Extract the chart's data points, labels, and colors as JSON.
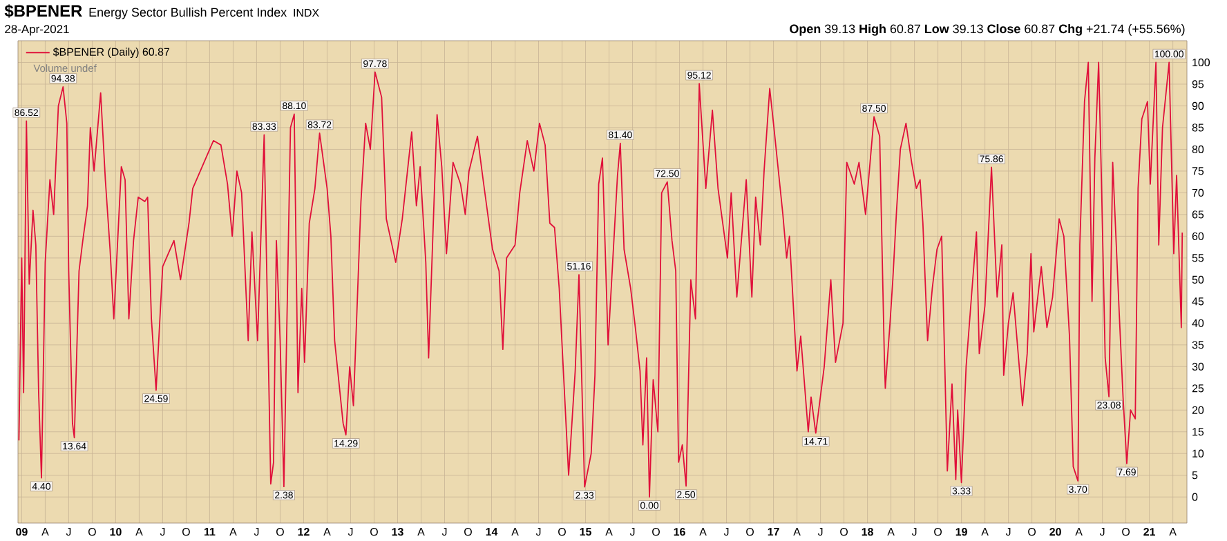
{
  "chart_data": {
    "type": "line",
    "title": "$BPENER",
    "subtitle": "Energy Sector Bullish Percent Index",
    "annotations": [
      "INDX",
      "28-Apr-2021",
      "**Open** 39.13  **High** 60.87  **Low** 39.13  **Close** 60.87  **Chg** +21.74 (+55.56%)",
      "Volume undef",
      {
        "text": "86.52",
        "x": 2009.05,
        "y": 86.52
      },
      {
        "text": "4.40",
        "x": 2009.21,
        "y": 4.4
      },
      {
        "text": "94.38",
        "x": 2009.44,
        "y": 94.38
      },
      {
        "text": "13.64",
        "x": 2009.56,
        "y": 13.64
      },
      {
        "text": "24.59",
        "x": 2010.43,
        "y": 24.59
      },
      {
        "text": "83.33",
        "x": 2011.58,
        "y": 83.33
      },
      {
        "text": "2.38",
        "x": 2011.79,
        "y": 2.38
      },
      {
        "text": "88.10",
        "x": 2011.9,
        "y": 88.1
      },
      {
        "text": "83.72",
        "x": 2012.17,
        "y": 83.72
      },
      {
        "text": "14.29",
        "x": 2012.45,
        "y": 14.29
      },
      {
        "text": "97.78",
        "x": 2012.76,
        "y": 97.78
      },
      {
        "text": "51.16",
        "x": 2014.93,
        "y": 51.16
      },
      {
        "text": "2.33",
        "x": 2014.99,
        "y": 2.33
      },
      {
        "text": "81.40",
        "x": 2015.37,
        "y": 81.4
      },
      {
        "text": "0.00",
        "x": 2015.68,
        "y": 0.0
      },
      {
        "text": "72.50",
        "x": 2015.87,
        "y": 72.5
      },
      {
        "text": "2.50",
        "x": 2016.07,
        "y": 2.5
      },
      {
        "text": "95.12",
        "x": 2016.21,
        "y": 95.12
      },
      {
        "text": "14.71",
        "x": 2017.45,
        "y": 14.71
      },
      {
        "text": "87.50",
        "x": 2018.07,
        "y": 87.5
      },
      {
        "text": "3.33",
        "x": 2019.0,
        "y": 3.33
      },
      {
        "text": "75.86",
        "x": 2019.32,
        "y": 75.86
      },
      {
        "text": "3.70",
        "x": 2020.24,
        "y": 3.7
      },
      {
        "text": "23.08",
        "x": 2020.57,
        "y": 23.08
      },
      {
        "text": "7.69",
        "x": 2020.76,
        "y": 7.69
      },
      {
        "text": "100.00",
        "x": 2021.21,
        "y": 100.0
      }
    ],
    "xlim": [
      2008.96,
      2021.4
    ],
    "ylim": [
      -6,
      105
    ],
    "xticks": [
      {
        "value": 2009,
        "label": "09"
      },
      {
        "value": 2009.25,
        "label": "A"
      },
      {
        "value": 2009.5,
        "label": "J"
      },
      {
        "value": 2009.75,
        "label": "O"
      },
      {
        "value": 2010,
        "label": "10"
      },
      {
        "value": 2010.25,
        "label": "A"
      },
      {
        "value": 2010.5,
        "label": "J"
      },
      {
        "value": 2010.75,
        "label": "O"
      },
      {
        "value": 2011,
        "label": "11"
      },
      {
        "value": 2011.25,
        "label": "A"
      },
      {
        "value": 2011.5,
        "label": "J"
      },
      {
        "value": 2011.75,
        "label": "O"
      },
      {
        "value": 2012,
        "label": "12"
      },
      {
        "value": 2012.25,
        "label": "A"
      },
      {
        "value": 2012.5,
        "label": "J"
      },
      {
        "value": 2012.75,
        "label": "O"
      },
      {
        "value": 2013,
        "label": "13"
      },
      {
        "value": 2013.25,
        "label": "A"
      },
      {
        "value": 2013.5,
        "label": "J"
      },
      {
        "value": 2013.75,
        "label": "O"
      },
      {
        "value": 2014,
        "label": "14"
      },
      {
        "value": 2014.25,
        "label": "A"
      },
      {
        "value": 2014.5,
        "label": "J"
      },
      {
        "value": 2014.75,
        "label": "O"
      },
      {
        "value": 2015,
        "label": "15"
      },
      {
        "value": 2015.25,
        "label": "A"
      },
      {
        "value": 2015.5,
        "label": "J"
      },
      {
        "value": 2015.75,
        "label": "O"
      },
      {
        "value": 2016,
        "label": "16"
      },
      {
        "value": 2016.25,
        "label": "A"
      },
      {
        "value": 2016.5,
        "label": "J"
      },
      {
        "value": 2016.75,
        "label": "O"
      },
      {
        "value": 2017,
        "label": "17"
      },
      {
        "value": 2017.25,
        "label": "A"
      },
      {
        "value": 2017.5,
        "label": "J"
      },
      {
        "value": 2017.75,
        "label": "O"
      },
      {
        "value": 2018,
        "label": "18"
      },
      {
        "value": 2018.25,
        "label": "A"
      },
      {
        "value": 2018.5,
        "label": "J"
      },
      {
        "value": 2018.75,
        "label": "O"
      },
      {
        "value": 2019,
        "label": "19"
      },
      {
        "value": 2019.25,
        "label": "A"
      },
      {
        "value": 2019.5,
        "label": "J"
      },
      {
        "value": 2019.75,
        "label": "O"
      },
      {
        "value": 2020,
        "label": "20"
      },
      {
        "value": 2020.25,
        "label": "A"
      },
      {
        "value": 2020.5,
        "label": "J"
      },
      {
        "value": 2020.75,
        "label": "O"
      },
      {
        "value": 2021,
        "label": "21"
      },
      {
        "value": 2021.25,
        "label": "A"
      }
    ],
    "yticks": [
      0,
      5,
      10,
      15,
      20,
      25,
      30,
      35,
      40,
      45,
      50,
      55,
      60,
      65,
      70,
      75,
      80,
      85,
      90,
      95,
      100
    ],
    "grid": true,
    "legend": "top left",
    "marker": "none",
    "line_style": "solid",
    "series": [
      {
        "name": "$BPENER (Daily) 60.87",
        "color": "#e0103a",
        "x": [
          2008.97,
          2009.0,
          2009.02,
          2009.05,
          2009.08,
          2009.12,
          2009.15,
          2009.18,
          2009.21,
          2009.25,
          2009.3,
          2009.34,
          2009.39,
          2009.44,
          2009.48,
          2009.5,
          2009.54,
          2009.56,
          2009.61,
          2009.65,
          2009.7,
          2009.73,
          2009.77,
          2009.84,
          2009.89,
          2009.94,
          2009.98,
          2010.06,
          2010.1,
          2010.14,
          2010.19,
          2010.24,
          2010.31,
          2010.34,
          2010.38,
          2010.43,
          2010.5,
          2010.62,
          2010.69,
          2010.78,
          2010.82,
          2010.92,
          2011.04,
          2011.12,
          2011.19,
          2011.24,
          2011.29,
          2011.34,
          2011.41,
          2011.45,
          2011.51,
          2011.58,
          2011.65,
          2011.68,
          2011.71,
          2011.75,
          2011.79,
          2011.86,
          2011.9,
          2011.94,
          2011.98,
          2012.01,
          2012.06,
          2012.12,
          2012.17,
          2012.25,
          2012.29,
          2012.33,
          2012.42,
          2012.45,
          2012.49,
          2012.53,
          2012.61,
          2012.66,
          2012.71,
          2012.76,
          2012.83,
          2012.88,
          2012.98,
          2013.05,
          2013.15,
          2013.2,
          2013.24,
          2013.3,
          2013.33,
          2013.42,
          2013.47,
          2013.52,
          2013.59,
          2013.67,
          2013.72,
          2013.76,
          2013.85,
          2013.91,
          2014.01,
          2014.08,
          2014.12,
          2014.16,
          2014.25,
          2014.3,
          2014.38,
          2014.45,
          2014.51,
          2014.57,
          2014.62,
          2014.67,
          2014.72,
          2014.82,
          2014.89,
          2014.93,
          2014.99,
          2015.06,
          2015.1,
          2015.14,
          2015.18,
          2015.24,
          2015.34,
          2015.37,
          2015.41,
          2015.48,
          2015.53,
          2015.58,
          2015.61,
          2015.65,
          2015.68,
          2015.72,
          2015.77,
          2015.81,
          2015.87,
          2015.92,
          2015.96,
          2015.99,
          2016.03,
          2016.07,
          2016.12,
          2016.17,
          2016.21,
          2016.28,
          2016.35,
          2016.41,
          2016.51,
          2016.55,
          2016.61,
          2016.71,
          2016.77,
          2016.81,
          2016.86,
          2016.9,
          2016.96,
          2017.0,
          2017.1,
          2017.14,
          2017.17,
          2017.25,
          2017.29,
          2017.37,
          2017.4,
          2017.45,
          2017.54,
          2017.61,
          2017.66,
          2017.74,
          2017.78,
          2017.86,
          2017.91,
          2017.98,
          2018.07,
          2018.13,
          2018.18,
          2018.19,
          2018.24,
          2018.27,
          2018.31,
          2018.35,
          2018.41,
          2018.47,
          2018.52,
          2018.56,
          2018.59,
          2018.64,
          2018.69,
          2018.74,
          2018.79,
          2018.85,
          2018.9,
          2018.94,
          2018.96,
          2019.0,
          2019.05,
          2019.11,
          2019.16,
          2019.19,
          2019.25,
          2019.32,
          2019.38,
          2019.43,
          2019.45,
          2019.5,
          2019.55,
          2019.6,
          2019.65,
          2019.7,
          2019.74,
          2019.77,
          2019.85,
          2019.91,
          2019.97,
          2020.04,
          2020.09,
          2020.15,
          2020.19,
          2020.24,
          2020.26,
          2020.31,
          2020.35,
          2020.39,
          2020.42,
          2020.46,
          2020.49,
          2020.53,
          2020.57,
          2020.61,
          2020.68,
          2020.72,
          2020.76,
          2020.8,
          2020.85,
          2020.88,
          2020.92,
          2020.98,
          2021.01,
          2021.07,
          2021.1,
          2021.14,
          2021.21,
          2021.26,
          2021.29,
          2021.34,
          2021.35
        ],
        "values": [
          13,
          55,
          24,
          86.52,
          49,
          66,
          58,
          24,
          4.4,
          54,
          73,
          65,
          90,
          94.38,
          86,
          52,
          17,
          13.64,
          52,
          59,
          67,
          85,
          75,
          93,
          73,
          57,
          41,
          76,
          73,
          41,
          59,
          69,
          68,
          69,
          41,
          24.59,
          53,
          59,
          50,
          63,
          71,
          76,
          82,
          81,
          72,
          60,
          75,
          70,
          36,
          61,
          36,
          83.33,
          3,
          8,
          59,
          36,
          2.38,
          85,
          88.1,
          24,
          48,
          31,
          63,
          71,
          83.72,
          71,
          60,
          36,
          17,
          14.29,
          30,
          21,
          68,
          86,
          80,
          97.78,
          92,
          64,
          54,
          64,
          84,
          67,
          76,
          54,
          32,
          88,
          76,
          56,
          77,
          72,
          65,
          75,
          83,
          73,
          57,
          52,
          34,
          55,
          58,
          70,
          82,
          75,
          86,
          81,
          63,
          62,
          48,
          5,
          29,
          51.16,
          2.33,
          10,
          28,
          72,
          78,
          35,
          74,
          81.4,
          57,
          48,
          39,
          29,
          12,
          32,
          0.0,
          27,
          15,
          70,
          72.5,
          59,
          52,
          8,
          12,
          2.5,
          50,
          41,
          95.12,
          71,
          89,
          71,
          55,
          70,
          46,
          73,
          46,
          69,
          58,
          75,
          94,
          86,
          65,
          55,
          60,
          29,
          37,
          15,
          23,
          14.71,
          30,
          50,
          31,
          40,
          77,
          72,
          77,
          65,
          87.5,
          83,
          32,
          25,
          40,
          50,
          66,
          80,
          86,
          77,
          71,
          73,
          63,
          36,
          48,
          57,
          60,
          6,
          26,
          4,
          20,
          3.33,
          30,
          47,
          61,
          33,
          44,
          75.86,
          46,
          58,
          28,
          40,
          47,
          34,
          21,
          33,
          56,
          38,
          53,
          39,
          46,
          64,
          60,
          37,
          7,
          3.7,
          58,
          91,
          100,
          45,
          78,
          100,
          73,
          32,
          23.08,
          77,
          42,
          23,
          7.69,
          20,
          18,
          71,
          87,
          91,
          72,
          100,
          58,
          85,
          100.0,
          56,
          74,
          39,
          60.87
        ]
      }
    ]
  }
}
